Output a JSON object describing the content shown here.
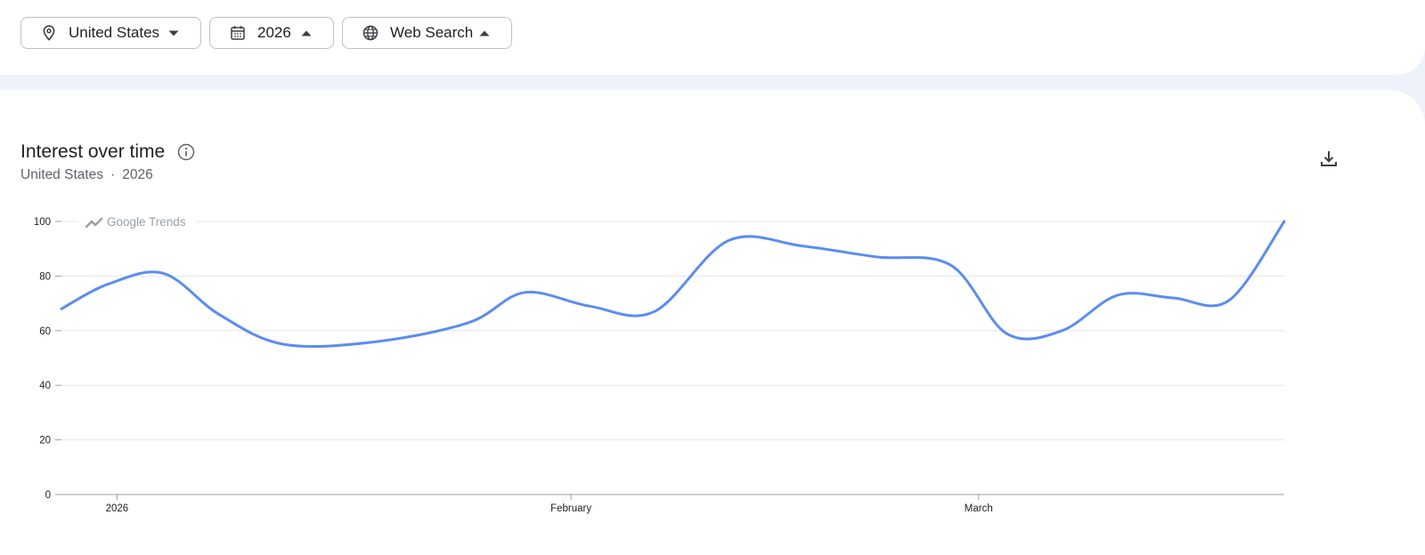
{
  "filters": {
    "location": "United States",
    "time": "2026",
    "property": "Web Search"
  },
  "card": {
    "title": "Interest over time",
    "subtitle_location": "United States",
    "subtitle_separator": "·",
    "subtitle_time": "2026",
    "watermark": "Google Trends"
  },
  "icons": {
    "location": "location-pin-icon",
    "time": "calendar-icon",
    "property": "globe-icon",
    "info": "info-icon",
    "download": "download-icon"
  },
  "colors": {
    "series": "#5b8dee",
    "grid": "#e6e6e6",
    "axis": "#9e9e9e"
  },
  "chart_data": {
    "type": "line",
    "title": "Interest over time",
    "xlabel": "",
    "ylabel": "",
    "ylim": [
      0,
      100
    ],
    "yticks": [
      0,
      20,
      40,
      60,
      80,
      100
    ],
    "xticks": [
      {
        "label": "2026",
        "x": 2
      },
      {
        "label": "February",
        "x": 26.5
      },
      {
        "label": "March",
        "x": 48.5
      }
    ],
    "xlim": [
      -1,
      65
    ],
    "grid": true,
    "series": [
      {
        "x": [
          -1,
          1.5,
          4.5,
          7.5,
          11,
          16,
          21,
          24,
          27.5,
          31,
          35,
          39,
          43,
          47,
          50,
          53,
          56,
          59,
          62,
          65
        ],
        "values": [
          68,
          77,
          81,
          66,
          55,
          56,
          63,
          74,
          69,
          67,
          93,
          91,
          87,
          84,
          59,
          60,
          73,
          72,
          71,
          100
        ]
      }
    ]
  }
}
